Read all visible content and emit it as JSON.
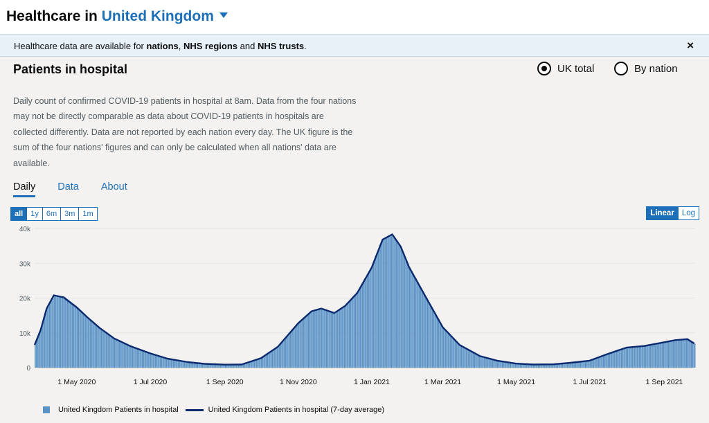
{
  "header": {
    "title_prefix": "Healthcare in",
    "title_place": "United Kingdom"
  },
  "banner": {
    "text_1": "Healthcare data are available for",
    "nations": "nations",
    "sep": ",",
    "regions": "NHS regions",
    "and": "and",
    "trusts": "NHS trusts",
    "end": ".",
    "close": "×"
  },
  "card": {
    "title": "Patients in hospital",
    "radio_uk": "UK total",
    "radio_nation": "By nation",
    "description": "Daily count of confirmed COVID-19 patients in hospital at 8am. Data from the four nations may not be directly comparable as data about COVID-19 patients in hospitals are collected differently. Data are not reported by each nation every day. The UK figure is the sum of the four nations' figures and can only be calculated when all nations' data are available."
  },
  "tabs": [
    "Daily",
    "Data",
    "About"
  ],
  "ranges": [
    "all",
    "1y",
    "6m",
    "3m",
    "1m"
  ],
  "scales": [
    "Linear",
    "Log"
  ],
  "colors": {
    "bar": "#5b93c7",
    "line": "#0b2a6e",
    "accent": "#1d70b8"
  },
  "chart_data": {
    "type": "bar",
    "title": "",
    "xlabel": "",
    "ylabel": "",
    "ylim": [
      0,
      40000
    ],
    "yticks": [
      0,
      10000,
      20000,
      30000,
      40000
    ],
    "ytick_labels": [
      "0",
      "10k",
      "20k",
      "30k",
      "40k"
    ],
    "xtick_dates": [
      "2020-05-01",
      "2020-07-01",
      "2020-09-01",
      "2020-11-01",
      "2021-01-01",
      "2021-03-01",
      "2021-05-01",
      "2021-07-01",
      "2021-09-01"
    ],
    "xtick_labels": [
      "1 May 2020",
      "1 Jul 2020",
      "1 Sep 2020",
      "1 Nov 2020",
      "1 Jan 2021",
      "1 Mar 2021",
      "1 May 2021",
      "1 Jul 2021",
      "1 Sep 2021"
    ],
    "grid": true,
    "legend_position": "bottom-left",
    "series": [
      {
        "name": "United Kingdom Patients in hospital",
        "kind": "bar"
      },
      {
        "name": "United Kingdom Patients in hospital (7-day average)",
        "kind": "line"
      }
    ],
    "x": [
      "2020-03-27",
      "2020-04-01",
      "2020-04-06",
      "2020-04-12",
      "2020-04-20",
      "2020-05-01",
      "2020-05-10",
      "2020-05-20",
      "2020-06-01",
      "2020-06-15",
      "2020-07-01",
      "2020-07-15",
      "2020-08-01",
      "2020-08-15",
      "2020-09-01",
      "2020-09-15",
      "2020-10-01",
      "2020-10-15",
      "2020-11-01",
      "2020-11-12",
      "2020-11-20",
      "2020-12-01",
      "2020-12-10",
      "2020-12-20",
      "2021-01-01",
      "2021-01-10",
      "2021-01-18",
      "2021-01-25",
      "2021-02-01",
      "2021-02-15",
      "2021-03-01",
      "2021-03-15",
      "2021-04-01",
      "2021-04-15",
      "2021-05-01",
      "2021-05-15",
      "2021-06-01",
      "2021-06-15",
      "2021-07-01",
      "2021-07-15",
      "2021-07-25",
      "2021-08-01",
      "2021-08-15",
      "2021-09-01",
      "2021-09-10",
      "2021-09-20",
      "2021-09-26"
    ],
    "values": [
      7000,
      11000,
      17000,
      20500,
      20500,
      17500,
      14500,
      11500,
      8500,
      6200,
      4200,
      2700,
      1700,
      1200,
      900,
      900,
      2800,
      6000,
      13000,
      16000,
      17000,
      15500,
      18000,
      22000,
      29000,
      37000,
      38000,
      34500,
      29000,
      20000,
      11500,
      6500,
      3400,
      2100,
      1200,
      900,
      950,
      1400,
      2000,
      3900,
      5000,
      5800,
      6300,
      7400,
      8000,
      8300,
      6800
    ],
    "averages": [
      6500,
      10800,
      17000,
      20800,
      20200,
      17300,
      14400,
      11400,
      8400,
      6100,
      4100,
      2600,
      1600,
      1100,
      850,
      900,
      2700,
      6000,
      12800,
      16200,
      17000,
      15700,
      17800,
      21500,
      28800,
      36800,
      38300,
      34800,
      28900,
      20200,
      11600,
      6500,
      3300,
      2000,
      1150,
      900,
      950,
      1400,
      2000,
      3800,
      5000,
      5800,
      6200,
      7300,
      7900,
      8200,
      6900
    ]
  }
}
